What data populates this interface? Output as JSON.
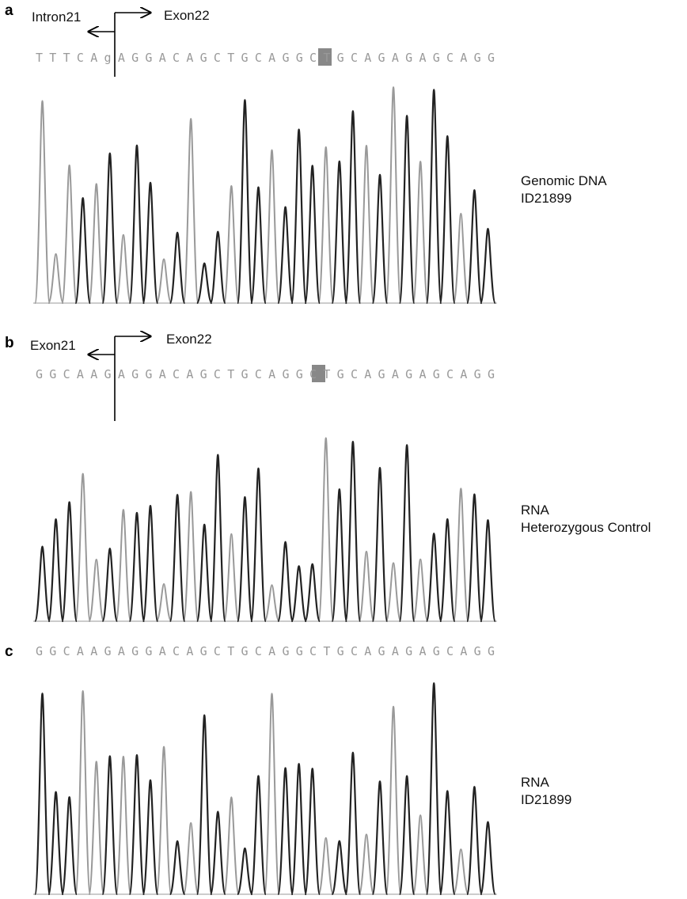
{
  "panels": [
    {
      "letter": "a",
      "left_label": "Intron21",
      "right_label": "Exon22",
      "sequence": "TTTCAgAGGACAGCTGCAGGCTGCAGAGAGCAGG",
      "caption": [
        "Genomic DNA",
        "ID21899"
      ]
    },
    {
      "letter": "b",
      "left_label": "Exon21",
      "right_label": "Exon22",
      "sequence": "GGCAAGAGGACAGCTGCAGGCTGCAGAGAGCAGG",
      "caption": [
        "RNA",
        "Heterozygous Control"
      ]
    },
    {
      "letter": "c",
      "sequence": "GGCAAGAGGACAGCTGCAGGCTGCAGAGAGCAGG",
      "caption": [
        "RNA",
        "ID21899"
      ]
    }
  ]
}
